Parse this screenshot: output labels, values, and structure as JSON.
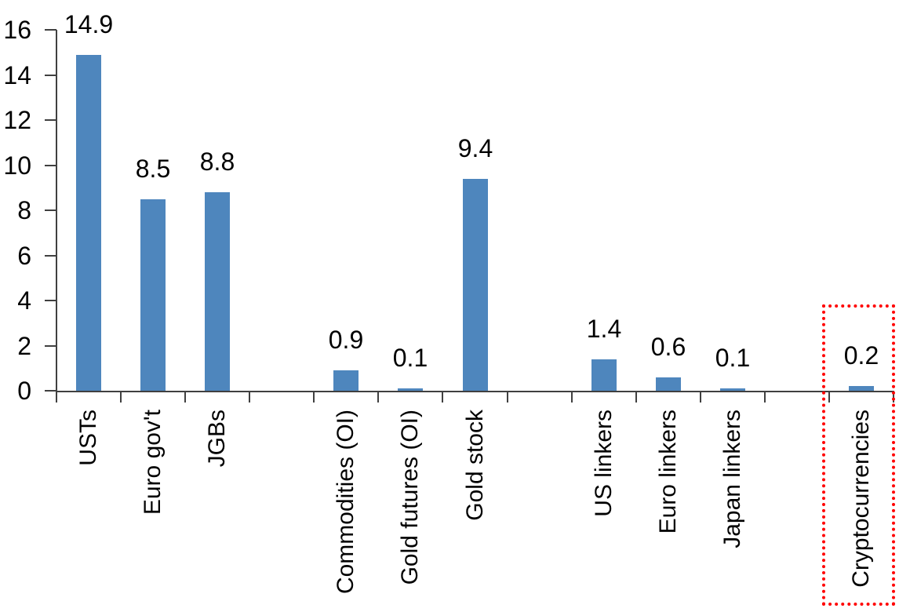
{
  "chart_data": {
    "type": "bar",
    "categories": [
      "USTs",
      "Euro gov't",
      "JGBs",
      "Commodities (OI)",
      "Gold futures (OI)",
      "Gold stock",
      "US linkers",
      "Euro linkers",
      "Japan linkers",
      "Cryptocurrencies"
    ],
    "values": [
      14.9,
      8.5,
      8.8,
      0.9,
      0.1,
      9.4,
      1.4,
      0.6,
      0.1,
      0.2
    ],
    "data_labels": [
      "14.9",
      "8.5",
      "8.8",
      "0.9",
      "0.1",
      "9.4",
      "1.4",
      "0.6",
      "0.1",
      "0.2"
    ],
    "yticks": [
      0,
      2,
      4,
      6,
      8,
      10,
      12,
      14,
      16
    ],
    "ylim": [
      0,
      16
    ],
    "title": "",
    "xlabel": "",
    "ylabel": "",
    "grid": false,
    "legend": false,
    "x_label_rotation": -90,
    "spacers_after_indices": [
      2,
      5,
      8
    ],
    "bar_color": "#4e86bd",
    "axis_color": "#404040",
    "text_color": "#000000",
    "highlight": {
      "category": "Cryptocurrencies",
      "style": "dotted-box",
      "color": "#ff0000"
    }
  }
}
